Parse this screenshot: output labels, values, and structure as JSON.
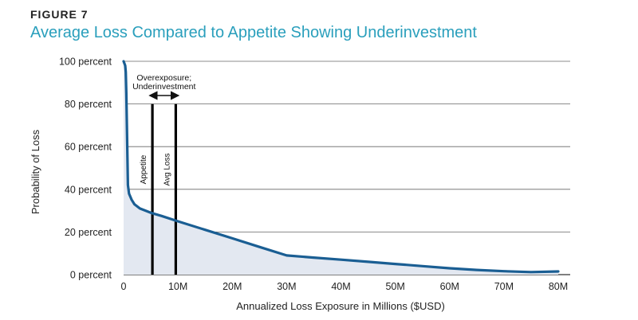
{
  "figure": {
    "label": "FIGURE 7",
    "title": "Average Loss Compared to Appetite Showing Underinvestment"
  },
  "chart_data": {
    "type": "area",
    "title": "Average Loss Compared to Appetite Showing Underinvestment",
    "xlabel": "Annualized Loss Exposure in Millions ($USD)",
    "ylabel": "Probability of Loss",
    "xlim": [
      0,
      80
    ],
    "ylim": [
      0,
      100
    ],
    "x_ticks": [
      0,
      10,
      20,
      30,
      40,
      50,
      60,
      70,
      80
    ],
    "x_tick_labels": [
      "0",
      "10M",
      "20M",
      "30M",
      "40M",
      "50M",
      "60M",
      "70M",
      "80M"
    ],
    "y_ticks": [
      0,
      20,
      40,
      60,
      80,
      100
    ],
    "y_tick_labels": [
      "0 percent",
      "20 percent",
      "40 percent",
      "60 percent",
      "80 percent",
      "100 percent"
    ],
    "grid": "horizontal",
    "line_color": "#1a5e93",
    "fill_color": "#e3e8f1",
    "series": [
      {
        "name": "Probability of Loss",
        "x": [
          0,
          0.3,
          0.4,
          0.5,
          0.6,
          0.7,
          0.8,
          1.0,
          1.5,
          2,
          3,
          5,
          7,
          10,
          15,
          20,
          25,
          30,
          35,
          40,
          45,
          50,
          55,
          60,
          65,
          70,
          75,
          80
        ],
        "y": [
          100,
          98,
          95,
          85,
          70,
          55,
          42,
          38,
          35,
          33,
          31,
          29,
          27.5,
          25,
          21,
          17,
          13,
          9,
          8,
          7,
          6,
          5,
          4,
          3,
          2.2,
          1.6,
          1.2,
          1.5
        ]
      }
    ],
    "markers": [
      {
        "name": "Appetite",
        "x": 5.3,
        "label": "Appetite"
      },
      {
        "name": "Avg Loss",
        "x": 9.6,
        "label": "Avg Loss"
      }
    ],
    "marker_top": 80,
    "annotation": {
      "lines": [
        "Overexposure;",
        "Underinvestment"
      ],
      "arrow_from": 5.3,
      "arrow_to": 9.6
    }
  }
}
